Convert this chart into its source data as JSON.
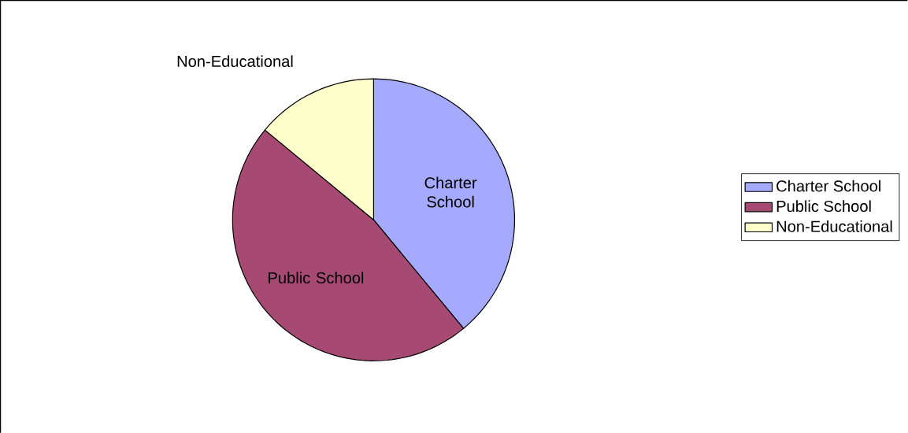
{
  "chart_data": {
    "type": "pie",
    "categories": [
      "Charter School",
      "Public School",
      "Non-Educational"
    ],
    "values": [
      39,
      47,
      14
    ],
    "colors": [
      "#a6aaff",
      "#a64a73",
      "#ffffcc"
    ],
    "legend": "right"
  }
}
